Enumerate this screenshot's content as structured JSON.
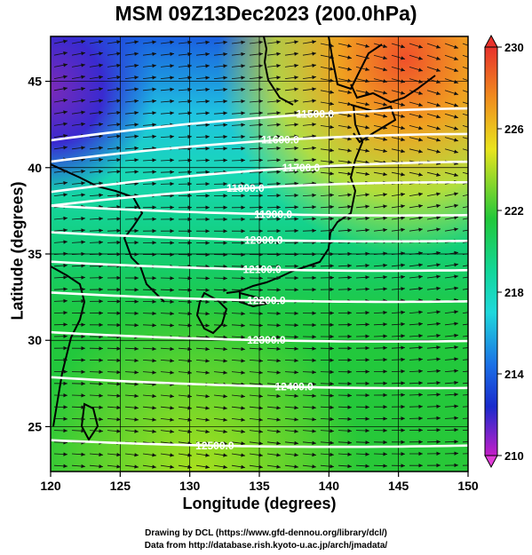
{
  "title": "MSM 09Z13Dec2023 (200.0hPa)",
  "xlabel": "Longitude (degrees)",
  "ylabel": "Latitude  (degrees)",
  "credit1": "Drawing by DCL (https://www.gfd-dennou.org/library/dcl/)",
  "credit2": "Data from http://database.rish.kyoto-u.ac.jp/arch/jmadata/",
  "chart_data": {
    "type": "heatmap",
    "x_ticks": [
      "120",
      "125",
      "130",
      "135",
      "140",
      "145",
      "150"
    ],
    "y_ticks": [
      "25",
      "30",
      "35",
      "40",
      "45"
    ],
    "xlim": [
      120,
      150
    ],
    "ylim": [
      22.4,
      47.6
    ],
    "colorbar": {
      "ticks": [
        "230",
        "226",
        "222",
        "218",
        "214",
        "210"
      ],
      "range": [
        210,
        230
      ]
    },
    "contour_labels": [
      "11500.0",
      "11600.0",
      "11700.0",
      "11800.0",
      "11900.0",
      "12000.0",
      "12100.0",
      "12200.0",
      "12300.0",
      "12400.0",
      "12500.0"
    ],
    "contours": [
      {
        "label": "11500.0",
        "lon": 139,
        "lat": 43.1
      },
      {
        "label": "11600.0",
        "lon": 136.5,
        "lat": 41.6
      },
      {
        "label": "11700.0",
        "lon": 138,
        "lat": 40
      },
      {
        "label": "11800.0",
        "lon": 134,
        "lat": 38.8
      },
      {
        "label": "11900.0",
        "lon": 136,
        "lat": 37.3
      },
      {
        "label": "12000.0",
        "lon": 135.3,
        "lat": 35.8
      },
      {
        "label": "12100.0",
        "lon": 135.2,
        "lat": 34.1
      },
      {
        "label": "12200.0",
        "lon": 135.5,
        "lat": 32.3
      },
      {
        "label": "12300.0",
        "lon": 135.5,
        "lat": 30
      },
      {
        "label": "12400.0",
        "lon": 137.5,
        "lat": 27.3
      },
      {
        "label": "12500.0",
        "lon": 131.8,
        "lat": 23.9
      }
    ]
  }
}
